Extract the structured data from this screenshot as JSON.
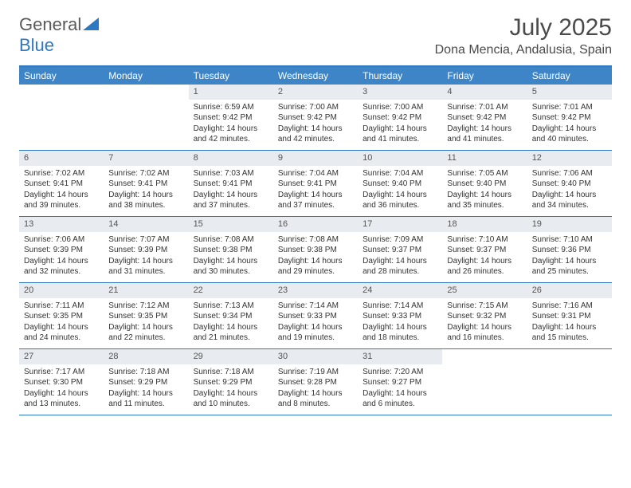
{
  "logo": {
    "text_general": "General",
    "text_blue": "Blue"
  },
  "title": "July 2025",
  "location": "Dona Mencia, Andalusia, Spain",
  "colors": {
    "header_bg": "#3d85c6",
    "border": "#2f78c2",
    "daynum_bg": "#e8ebef",
    "text": "#333333"
  },
  "day_headers": [
    "Sunday",
    "Monday",
    "Tuesday",
    "Wednesday",
    "Thursday",
    "Friday",
    "Saturday"
  ],
  "weeks": [
    [
      {
        "empty": true
      },
      {
        "empty": true
      },
      {
        "num": "1",
        "sunrise": "Sunrise: 6:59 AM",
        "sunset": "Sunset: 9:42 PM",
        "daylight1": "Daylight: 14 hours",
        "daylight2": "and 42 minutes."
      },
      {
        "num": "2",
        "sunrise": "Sunrise: 7:00 AM",
        "sunset": "Sunset: 9:42 PM",
        "daylight1": "Daylight: 14 hours",
        "daylight2": "and 42 minutes."
      },
      {
        "num": "3",
        "sunrise": "Sunrise: 7:00 AM",
        "sunset": "Sunset: 9:42 PM",
        "daylight1": "Daylight: 14 hours",
        "daylight2": "and 41 minutes."
      },
      {
        "num": "4",
        "sunrise": "Sunrise: 7:01 AM",
        "sunset": "Sunset: 9:42 PM",
        "daylight1": "Daylight: 14 hours",
        "daylight2": "and 41 minutes."
      },
      {
        "num": "5",
        "sunrise": "Sunrise: 7:01 AM",
        "sunset": "Sunset: 9:42 PM",
        "daylight1": "Daylight: 14 hours",
        "daylight2": "and 40 minutes."
      }
    ],
    [
      {
        "num": "6",
        "sunrise": "Sunrise: 7:02 AM",
        "sunset": "Sunset: 9:41 PM",
        "daylight1": "Daylight: 14 hours",
        "daylight2": "and 39 minutes."
      },
      {
        "num": "7",
        "sunrise": "Sunrise: 7:02 AM",
        "sunset": "Sunset: 9:41 PM",
        "daylight1": "Daylight: 14 hours",
        "daylight2": "and 38 minutes."
      },
      {
        "num": "8",
        "sunrise": "Sunrise: 7:03 AM",
        "sunset": "Sunset: 9:41 PM",
        "daylight1": "Daylight: 14 hours",
        "daylight2": "and 37 minutes."
      },
      {
        "num": "9",
        "sunrise": "Sunrise: 7:04 AM",
        "sunset": "Sunset: 9:41 PM",
        "daylight1": "Daylight: 14 hours",
        "daylight2": "and 37 minutes."
      },
      {
        "num": "10",
        "sunrise": "Sunrise: 7:04 AM",
        "sunset": "Sunset: 9:40 PM",
        "daylight1": "Daylight: 14 hours",
        "daylight2": "and 36 minutes."
      },
      {
        "num": "11",
        "sunrise": "Sunrise: 7:05 AM",
        "sunset": "Sunset: 9:40 PM",
        "daylight1": "Daylight: 14 hours",
        "daylight2": "and 35 minutes."
      },
      {
        "num": "12",
        "sunrise": "Sunrise: 7:06 AM",
        "sunset": "Sunset: 9:40 PM",
        "daylight1": "Daylight: 14 hours",
        "daylight2": "and 34 minutes."
      }
    ],
    [
      {
        "num": "13",
        "sunrise": "Sunrise: 7:06 AM",
        "sunset": "Sunset: 9:39 PM",
        "daylight1": "Daylight: 14 hours",
        "daylight2": "and 32 minutes."
      },
      {
        "num": "14",
        "sunrise": "Sunrise: 7:07 AM",
        "sunset": "Sunset: 9:39 PM",
        "daylight1": "Daylight: 14 hours",
        "daylight2": "and 31 minutes."
      },
      {
        "num": "15",
        "sunrise": "Sunrise: 7:08 AM",
        "sunset": "Sunset: 9:38 PM",
        "daylight1": "Daylight: 14 hours",
        "daylight2": "and 30 minutes."
      },
      {
        "num": "16",
        "sunrise": "Sunrise: 7:08 AM",
        "sunset": "Sunset: 9:38 PM",
        "daylight1": "Daylight: 14 hours",
        "daylight2": "and 29 minutes."
      },
      {
        "num": "17",
        "sunrise": "Sunrise: 7:09 AM",
        "sunset": "Sunset: 9:37 PM",
        "daylight1": "Daylight: 14 hours",
        "daylight2": "and 28 minutes."
      },
      {
        "num": "18",
        "sunrise": "Sunrise: 7:10 AM",
        "sunset": "Sunset: 9:37 PM",
        "daylight1": "Daylight: 14 hours",
        "daylight2": "and 26 minutes."
      },
      {
        "num": "19",
        "sunrise": "Sunrise: 7:10 AM",
        "sunset": "Sunset: 9:36 PM",
        "daylight1": "Daylight: 14 hours",
        "daylight2": "and 25 minutes."
      }
    ],
    [
      {
        "num": "20",
        "sunrise": "Sunrise: 7:11 AM",
        "sunset": "Sunset: 9:35 PM",
        "daylight1": "Daylight: 14 hours",
        "daylight2": "and 24 minutes."
      },
      {
        "num": "21",
        "sunrise": "Sunrise: 7:12 AM",
        "sunset": "Sunset: 9:35 PM",
        "daylight1": "Daylight: 14 hours",
        "daylight2": "and 22 minutes."
      },
      {
        "num": "22",
        "sunrise": "Sunrise: 7:13 AM",
        "sunset": "Sunset: 9:34 PM",
        "daylight1": "Daylight: 14 hours",
        "daylight2": "and 21 minutes."
      },
      {
        "num": "23",
        "sunrise": "Sunrise: 7:14 AM",
        "sunset": "Sunset: 9:33 PM",
        "daylight1": "Daylight: 14 hours",
        "daylight2": "and 19 minutes."
      },
      {
        "num": "24",
        "sunrise": "Sunrise: 7:14 AM",
        "sunset": "Sunset: 9:33 PM",
        "daylight1": "Daylight: 14 hours",
        "daylight2": "and 18 minutes."
      },
      {
        "num": "25",
        "sunrise": "Sunrise: 7:15 AM",
        "sunset": "Sunset: 9:32 PM",
        "daylight1": "Daylight: 14 hours",
        "daylight2": "and 16 minutes."
      },
      {
        "num": "26",
        "sunrise": "Sunrise: 7:16 AM",
        "sunset": "Sunset: 9:31 PM",
        "daylight1": "Daylight: 14 hours",
        "daylight2": "and 15 minutes."
      }
    ],
    [
      {
        "num": "27",
        "sunrise": "Sunrise: 7:17 AM",
        "sunset": "Sunset: 9:30 PM",
        "daylight1": "Daylight: 14 hours",
        "daylight2": "and 13 minutes."
      },
      {
        "num": "28",
        "sunrise": "Sunrise: 7:18 AM",
        "sunset": "Sunset: 9:29 PM",
        "daylight1": "Daylight: 14 hours",
        "daylight2": "and 11 minutes."
      },
      {
        "num": "29",
        "sunrise": "Sunrise: 7:18 AM",
        "sunset": "Sunset: 9:29 PM",
        "daylight1": "Daylight: 14 hours",
        "daylight2": "and 10 minutes."
      },
      {
        "num": "30",
        "sunrise": "Sunrise: 7:19 AM",
        "sunset": "Sunset: 9:28 PM",
        "daylight1": "Daylight: 14 hours",
        "daylight2": "and 8 minutes."
      },
      {
        "num": "31",
        "sunrise": "Sunrise: 7:20 AM",
        "sunset": "Sunset: 9:27 PM",
        "daylight1": "Daylight: 14 hours",
        "daylight2": "and 6 minutes."
      },
      {
        "empty": true
      },
      {
        "empty": true
      }
    ]
  ]
}
